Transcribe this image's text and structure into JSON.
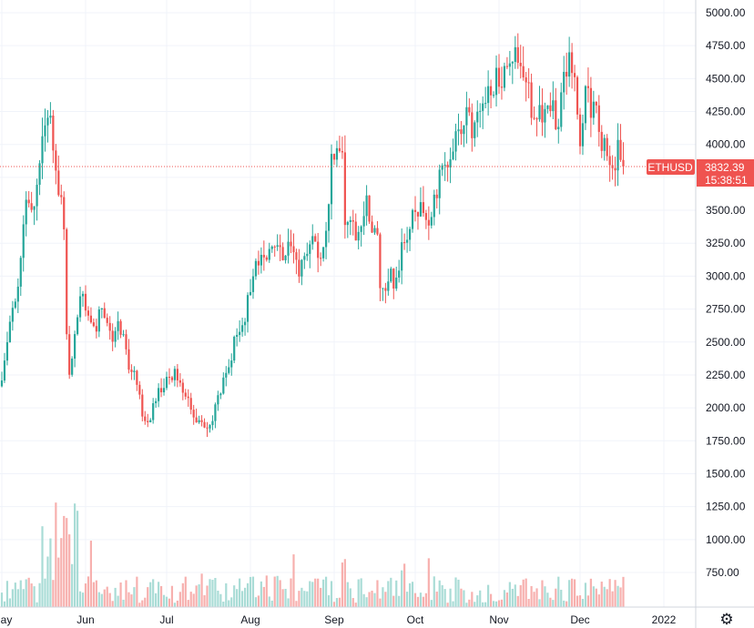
{
  "chart_data": {
    "type": "candlestick",
    "symbol": "ETHUSD",
    "last_price": "3832.39",
    "countdown": "15:38:51",
    "ylim": [
      542,
      5040
    ],
    "y_ticks": [
      5000,
      4750,
      4500,
      4250,
      4000,
      3750,
      3500,
      3250,
      3000,
      2750,
      2500,
      2250,
      2000,
      1750,
      1500,
      1250,
      1000,
      750
    ],
    "y_tick_labels": [
      "5000.00",
      "4750.00",
      "4500.00",
      "4250.00",
      "4000.00",
      "3750.00",
      "3500.00",
      "3250.00",
      "3000.00",
      "2750.00",
      "2500.00",
      "2250.00",
      "2000.00",
      "1750.00",
      "1500.00",
      "1250.00",
      "1000.00",
      "750.00"
    ],
    "x_labels": [
      {
        "label": "May",
        "day": 0
      },
      {
        "label": "Jun",
        "day": 31
      },
      {
        "label": "Jul",
        "day": 61
      },
      {
        "label": "Aug",
        "day": 92
      },
      {
        "label": "Sep",
        "day": 123
      },
      {
        "label": "Oct",
        "day": 153
      },
      {
        "label": "Nov",
        "day": 184
      },
      {
        "label": "Dec",
        "day": 214
      },
      {
        "label": "2022",
        "day": 245
      }
    ],
    "x_range_days": [
      0,
      254
    ],
    "keypoints": [
      [
        0,
        2180
      ],
      [
        3,
        2700
      ],
      [
        6,
        2900
      ],
      [
        9,
        3600
      ],
      [
        12,
        3500
      ],
      [
        14,
        3900
      ],
      [
        16,
        4150
      ],
      [
        18,
        4200
      ],
      [
        20,
        3800
      ],
      [
        22,
        3600
      ],
      [
        23,
        3420
      ],
      [
        24,
        2500
      ],
      [
        25,
        2200
      ],
      [
        26,
        2400
      ],
      [
        27,
        2600
      ],
      [
        29,
        2850
      ],
      [
        31,
        2750
      ],
      [
        33,
        2700
      ],
      [
        35,
        2600
      ],
      [
        37,
        2800
      ],
      [
        39,
        2650
      ],
      [
        41,
        2500
      ],
      [
        43,
        2600
      ],
      [
        45,
        2500
      ],
      [
        47,
        2300
      ],
      [
        50,
        2200
      ],
      [
        52,
        1950
      ],
      [
        54,
        1850
      ],
      [
        56,
        2000
      ],
      [
        58,
        2150
      ],
      [
        61,
        2200
      ],
      [
        63,
        2250
      ],
      [
        64,
        2300
      ],
      [
        66,
        2150
      ],
      [
        68,
        2100
      ],
      [
        70,
        1950
      ],
      [
        72,
        1900
      ],
      [
        74,
        1850
      ],
      [
        76,
        1800
      ],
      [
        78,
        1900
      ],
      [
        81,
        2150
      ],
      [
        84,
        2350
      ],
      [
        87,
        2550
      ],
      [
        90,
        2700
      ],
      [
        93,
        3050
      ],
      [
        96,
        3100
      ],
      [
        98,
        3200
      ],
      [
        100,
        3300
      ],
      [
        102,
        3200
      ],
      [
        104,
        3100
      ],
      [
        106,
        3250
      ],
      [
        108,
        3150
      ],
      [
        110,
        3050
      ],
      [
        112,
        3200
      ],
      [
        114,
        3250
      ],
      [
        116,
        3200
      ],
      [
        118,
        3200
      ],
      [
        120,
        3350
      ],
      [
        122,
        3850
      ],
      [
        124,
        3900
      ],
      [
        126,
        3950
      ],
      [
        127,
        3450
      ],
      [
        129,
        3400
      ],
      [
        131,
        3300
      ],
      [
        133,
        3450
      ],
      [
        135,
        3550
      ],
      [
        137,
        3300
      ],
      [
        139,
        3300
      ],
      [
        140,
        2950
      ],
      [
        142,
        2850
      ],
      [
        144,
        3000
      ],
      [
        146,
        2950
      ],
      [
        148,
        3200
      ],
      [
        151,
        3350
      ],
      [
        153,
        3500
      ],
      [
        156,
        3550
      ],
      [
        158,
        3450
      ],
      [
        160,
        3550
      ],
      [
        162,
        3750
      ],
      [
        164,
        3800
      ],
      [
        166,
        3900
      ],
      [
        168,
        4100
      ],
      [
        170,
        4000
      ],
      [
        172,
        4200
      ],
      [
        174,
        4100
      ],
      [
        176,
        4150
      ],
      [
        178,
        4250
      ],
      [
        180,
        4400
      ],
      [
        182,
        4450
      ],
      [
        184,
        4550
      ],
      [
        186,
        4500
      ],
      [
        188,
        4650
      ],
      [
        190,
        4750
      ],
      [
        192,
        4650
      ],
      [
        193,
        4550
      ],
      [
        195,
        4450
      ],
      [
        196,
        4200
      ],
      [
        198,
        4150
      ],
      [
        200,
        4250
      ],
      [
        202,
        4350
      ],
      [
        204,
        4250
      ],
      [
        206,
        4150
      ],
      [
        208,
        4500
      ],
      [
        210,
        4600
      ],
      [
        212,
        4550
      ],
      [
        213,
        4200
      ],
      [
        214,
        4000
      ],
      [
        216,
        4450
      ],
      [
        218,
        4300
      ],
      [
        220,
        4200
      ],
      [
        222,
        4050
      ],
      [
        224,
        3900
      ],
      [
        226,
        3850
      ],
      [
        228,
        3950
      ],
      [
        230,
        3832
      ]
    ],
    "seed": 1337,
    "colors": {
      "up": "#26a69a",
      "down": "#ef5350",
      "up_volume": "#a9dcd6",
      "down_volume": "#f7b0ae",
      "grid": "#f0f3fa",
      "axis_border": "#d1d4dc",
      "price_line": "#ef5350",
      "label_bg": "#ef5350",
      "label_text": "#ffffff",
      "text": "#131722"
    },
    "gear_icon": "gear-icon"
  }
}
